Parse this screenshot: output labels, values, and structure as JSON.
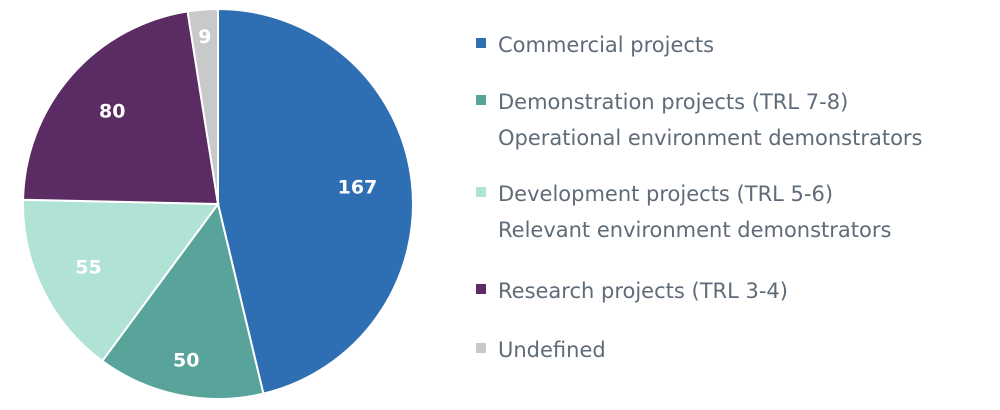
{
  "chart_data": {
    "type": "pie",
    "slices": [
      {
        "label": "Commercial projects",
        "value": 167,
        "color": "#2e6fb3"
      },
      {
        "label": "Demonstration projects (TRL 7-8)",
        "sublabel": "Operational environment demonstrators",
        "value": 50,
        "color": "#58a39a"
      },
      {
        "label": "Development projects (TRL 5-6)",
        "sublabel": "Relevant environment demonstrators",
        "value": 55,
        "color": "#b0e2d5"
      },
      {
        "label": "Research projects (TRL 3-4)",
        "value": 80,
        "color": "#5b2c64"
      },
      {
        "label": "Undefined",
        "value": 9,
        "color": "#c9c9c9"
      }
    ],
    "legend_position": "right"
  }
}
